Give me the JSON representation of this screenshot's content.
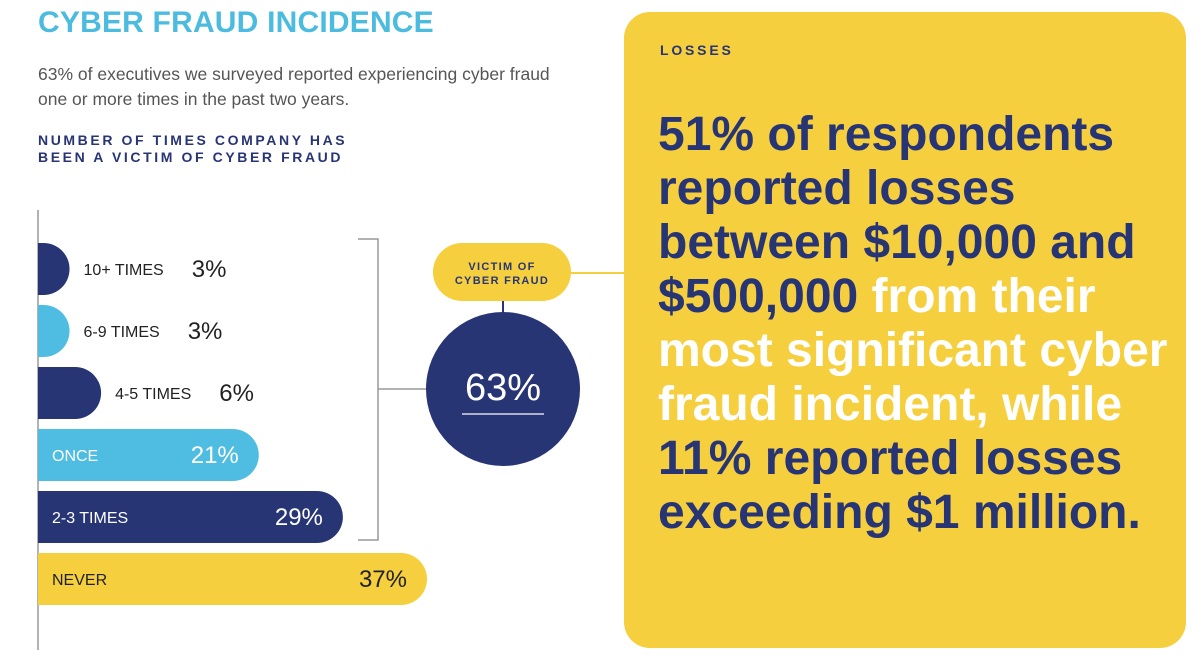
{
  "colors": {
    "title": "#4bbbe0",
    "navy": "#283574",
    "lightblue": "#4ebde1",
    "yellow": "#f6cf3f",
    "white": "#ffffff",
    "gray_text": "#555555",
    "axis": "#999999"
  },
  "header": {
    "title": "CYBER FRAUD INCIDENCE",
    "subtitle": "63% of executives we surveyed reported experiencing cyber fraud one or more times in the past two years."
  },
  "chart_data": {
    "type": "bar",
    "orientation": "horizontal",
    "title": "NUMBER OF TIMES COMPANY HAS BEEN A VICTIM OF CYBER FRAUD",
    "categories": [
      "10+ TIMES",
      "6-9 TIMES",
      "4-5 TIMES",
      "ONCE",
      "2-3 TIMES",
      "NEVER"
    ],
    "values": [
      3,
      3,
      6,
      21,
      29,
      37
    ],
    "value_labels": [
      "3%",
      "3%",
      "6%",
      "21%",
      "29%",
      "37%"
    ],
    "bar_colors": [
      "navy",
      "lightblue",
      "navy",
      "lightblue",
      "navy",
      "yellow"
    ],
    "xlim": [
      0,
      37
    ],
    "unit": "%",
    "summary": {
      "label": "VICTIM OF CYBER FRAUD",
      "value_label": "63%",
      "grouped_categories": [
        "10+ TIMES",
        "6-9 TIMES",
        "4-5 TIMES",
        "ONCE",
        "2-3 TIMES"
      ]
    }
  },
  "losses": {
    "label": "LOSSES",
    "text_segments": [
      {
        "text": "51% of respondents reported losses between $10,000 and $500,000",
        "emphasis": true
      },
      {
        "text": " from their most significant cyber fraud incident, while ",
        "emphasis": false
      },
      {
        "text": "11% reported losses exceeding $1 million.",
        "emphasis": true
      }
    ]
  }
}
